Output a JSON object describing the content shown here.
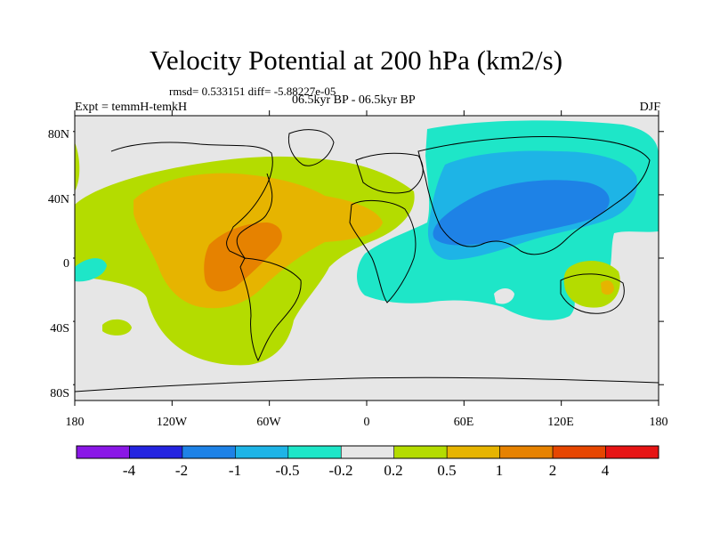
{
  "title": "Velocity Potential at 200 hPa (km2/s)",
  "stats_line": "rmsd= 0.533151 diff= -5.88227e-05",
  "experiment_label": "Expt = temmH-temkH",
  "period_label": "06.5kyr BP - 06.5kyr BP",
  "season_label": "DJF",
  "map": {
    "projection": "cylindrical equidistant",
    "lon_range": [
      -180,
      180
    ],
    "lat_range": [
      -90,
      90
    ],
    "background_color": "#e6e6e6",
    "coastline_color": "#000000",
    "lon_ticks": [
      "180",
      "120W",
      "60W",
      "0",
      "60E",
      "120E",
      "180"
    ],
    "lat_ticks": [
      "80N",
      "40N",
      "0",
      "40S",
      "80S"
    ]
  },
  "colorbar": {
    "colors": [
      "#8a17e6",
      "#2424e0",
      "#1e82e6",
      "#1eb4e6",
      "#1ee6c8",
      "#e6e6e6",
      "#b4dc00",
      "#e6b400",
      "#e68200",
      "#e64600",
      "#e61414"
    ],
    "labels": [
      "-4",
      "-2",
      "-1",
      "-0.5",
      "-0.2",
      "0.2",
      "0.5",
      "1",
      "2",
      "4"
    ]
  }
}
